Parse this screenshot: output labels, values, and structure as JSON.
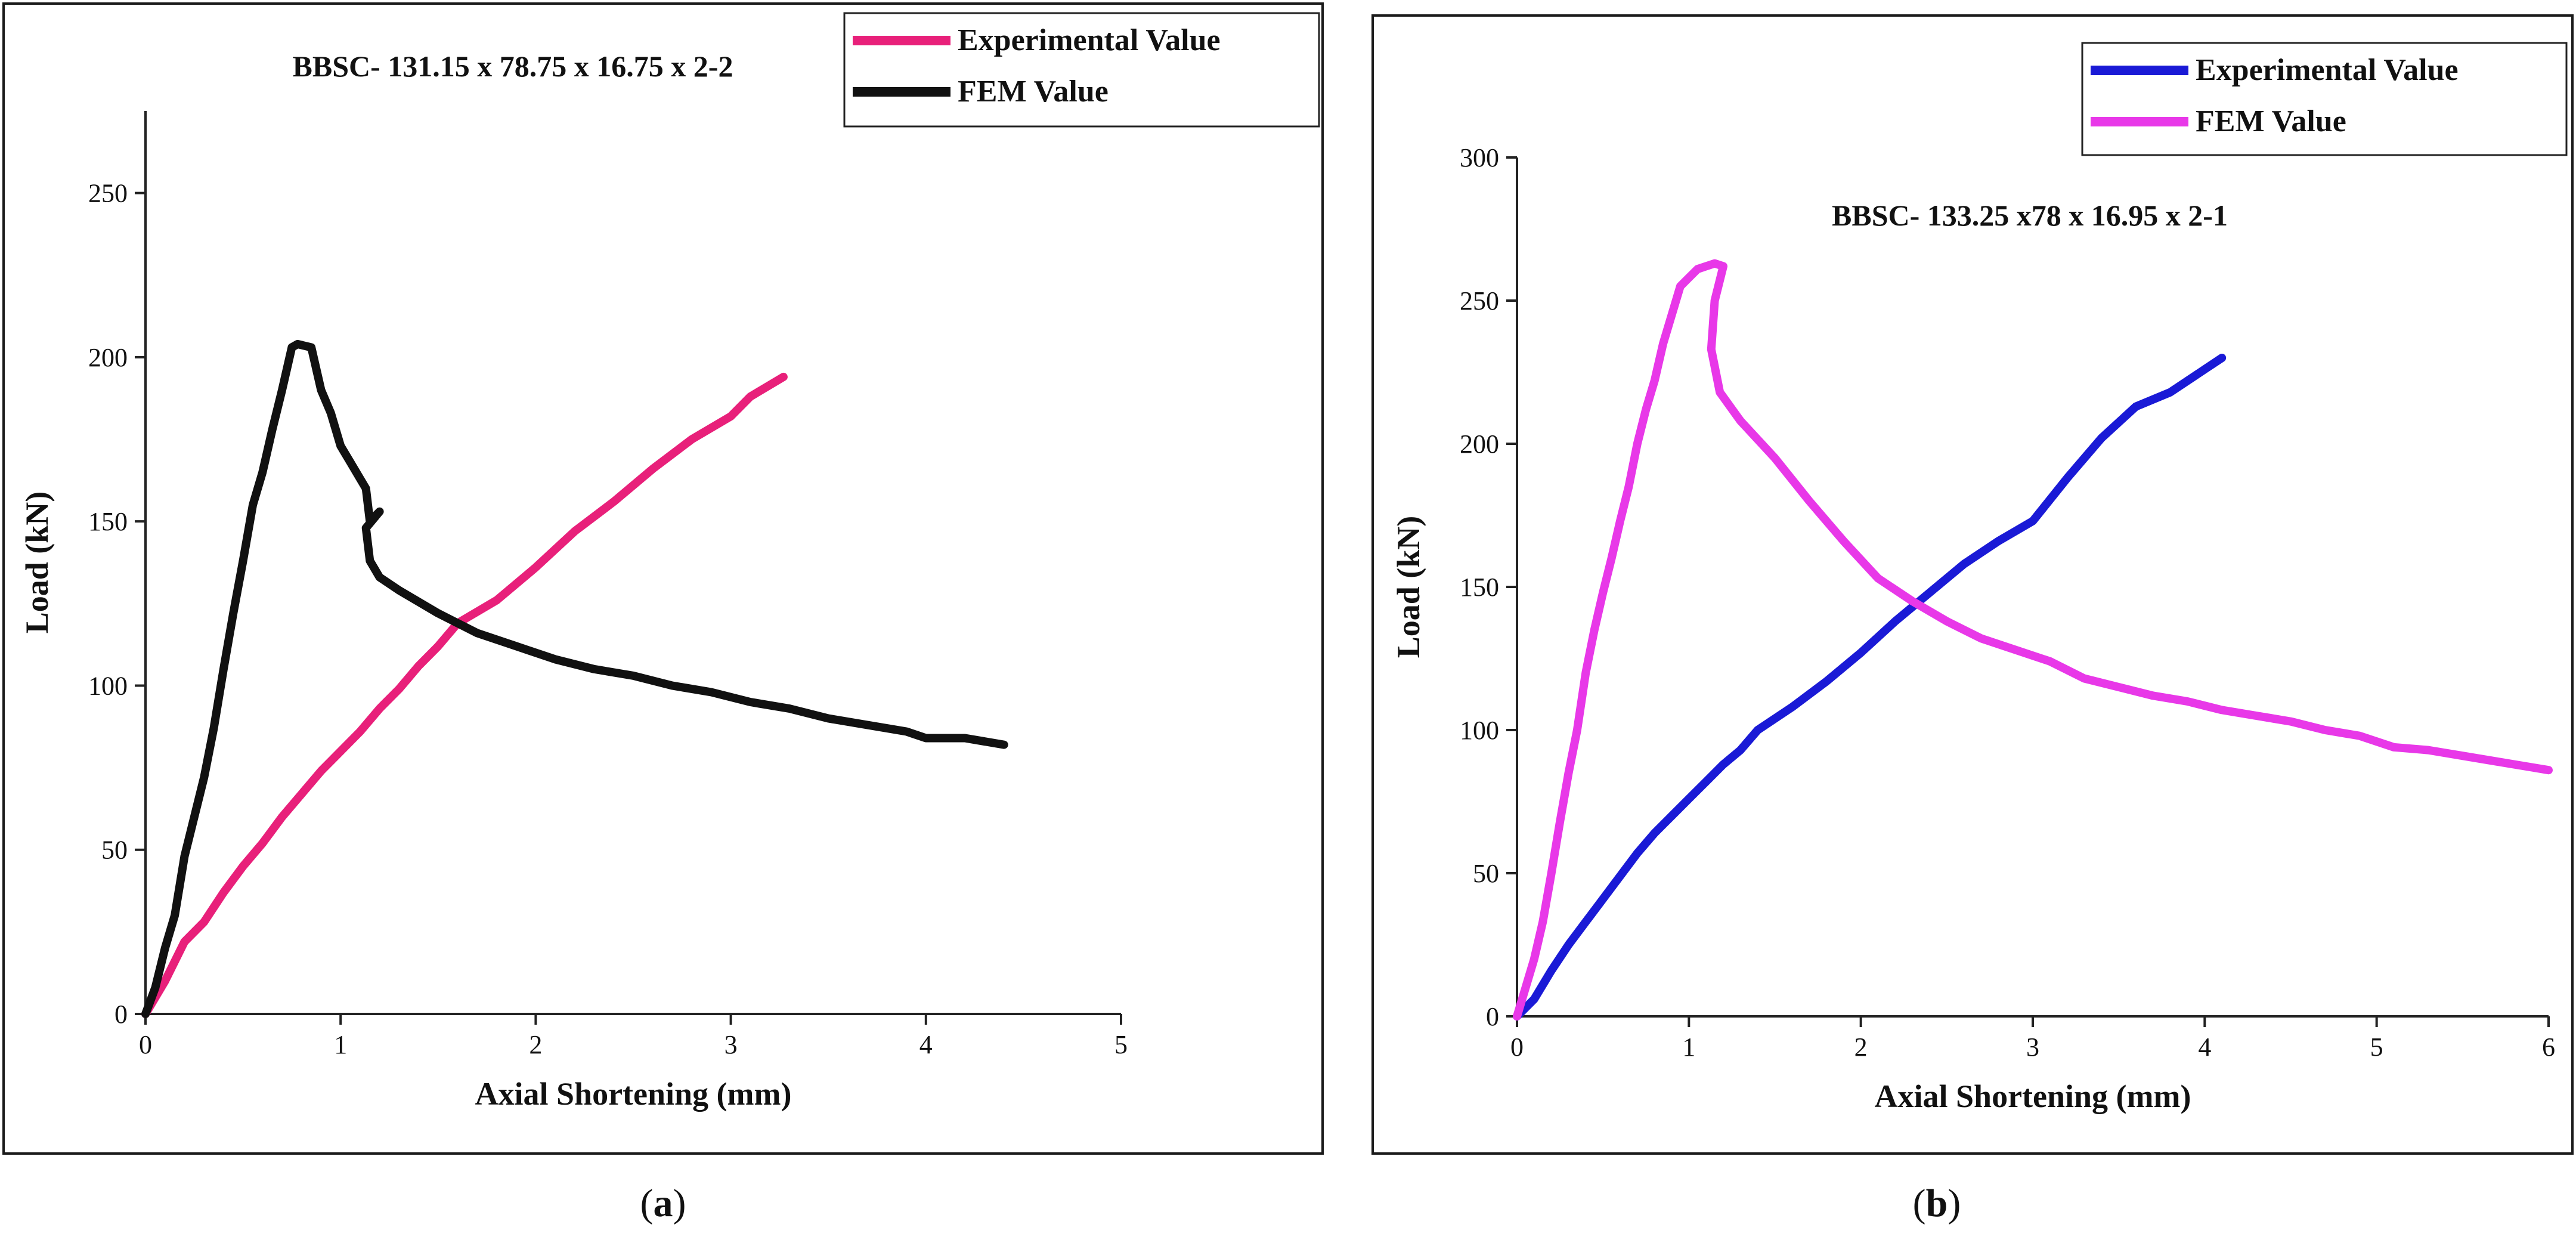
{
  "chart_data": [
    {
      "type": "line",
      "panel_label": "a",
      "title": "BBSC- 131.15 x 78.75 x 16.75 x 2-2",
      "xlabel": "Axial Shortening (mm)",
      "ylabel": "Load (kN)",
      "xlim": [
        0,
        5
      ],
      "ylim": [
        0,
        275
      ],
      "xticks": [
        0,
        1,
        2,
        3,
        4,
        5
      ],
      "yticks": [
        0,
        50,
        100,
        150,
        200,
        250
      ],
      "legend_position": "top-right",
      "series": [
        {
          "name": "Experimental Value",
          "color": "#e8207a",
          "x": [
            0,
            0.1,
            0.2,
            0.3,
            0.4,
            0.5,
            0.6,
            0.7,
            0.8,
            0.9,
            1.0,
            1.1,
            1.2,
            1.3,
            1.4,
            1.5,
            1.6,
            1.8,
            2.0,
            2.2,
            2.4,
            2.6,
            2.8,
            3.0,
            3.1,
            3.27
          ],
          "y": [
            0,
            10,
            22,
            28,
            37,
            45,
            52,
            60,
            67,
            74,
            80,
            86,
            93,
            99,
            106,
            112,
            119,
            126,
            136,
            147,
            156,
            166,
            175,
            182,
            188,
            194
          ]
        },
        {
          "name": "FEM Value",
          "color": "#111111",
          "x": [
            0,
            0.05,
            0.1,
            0.15,
            0.2,
            0.25,
            0.3,
            0.35,
            0.4,
            0.45,
            0.5,
            0.55,
            0.6,
            0.65,
            0.7,
            0.75,
            0.78,
            0.85,
            0.9,
            0.95,
            1.0,
            1.05,
            1.1,
            1.13,
            1.15,
            1.2,
            1.13,
            1.15,
            1.2,
            1.3,
            1.5,
            1.7,
            1.9,
            2.1,
            2.3,
            2.5,
            2.7,
            2.9,
            3.1,
            3.3,
            3.5,
            3.7,
            3.9,
            4.0,
            4.2,
            4.4
          ],
          "y": [
            0,
            8,
            20,
            30,
            48,
            60,
            72,
            87,
            105,
            122,
            138,
            155,
            165,
            178,
            190,
            203,
            204,
            203,
            190,
            183,
            173,
            168,
            163,
            160,
            150,
            153,
            148,
            138,
            133,
            129,
            122,
            116,
            112,
            108,
            105,
            103,
            100,
            98,
            95,
            93,
            90,
            88,
            86,
            84,
            84,
            82
          ]
        }
      ]
    },
    {
      "type": "line",
      "panel_label": "b",
      "title": "BBSC- 133.25 x78 x 16.95 x 2-1",
      "xlabel": "Axial Shortening (mm)",
      "ylabel": "Load (kN)",
      "xlim": [
        0,
        6
      ],
      "ylim": [
        0,
        300
      ],
      "xticks": [
        0,
        1,
        2,
        3,
        4,
        5,
        6
      ],
      "yticks": [
        0,
        50,
        100,
        150,
        200,
        250,
        300
      ],
      "legend_position": "top-right",
      "series": [
        {
          "name": "Experimental Value",
          "color": "#1a1ad6",
          "x": [
            0,
            0.1,
            0.2,
            0.3,
            0.4,
            0.5,
            0.6,
            0.7,
            0.8,
            0.9,
            1.0,
            1.1,
            1.2,
            1.3,
            1.4,
            1.6,
            1.8,
            2.0,
            2.2,
            2.4,
            2.6,
            2.8,
            3.0,
            3.2,
            3.4,
            3.6,
            3.8,
            4.0,
            4.1
          ],
          "y": [
            0,
            6,
            16,
            25,
            33,
            41,
            49,
            57,
            64,
            70,
            76,
            82,
            88,
            93,
            100,
            108,
            117,
            127,
            138,
            148,
            158,
            166,
            173,
            188,
            202,
            213,
            218,
            226,
            230
          ]
        },
        {
          "name": "FEM Value",
          "color": "#e838e8",
          "x": [
            0,
            0.05,
            0.1,
            0.15,
            0.2,
            0.25,
            0.3,
            0.35,
            0.4,
            0.45,
            0.5,
            0.55,
            0.6,
            0.65,
            0.7,
            0.75,
            0.8,
            0.85,
            0.9,
            0.95,
            1.0,
            1.05,
            1.1,
            1.15,
            1.2,
            1.15,
            1.13,
            1.18,
            1.3,
            1.5,
            1.7,
            1.9,
            2.1,
            2.3,
            2.5,
            2.7,
            2.9,
            3.1,
            3.3,
            3.5,
            3.7,
            3.9,
            4.1,
            4.3,
            4.5,
            4.7,
            4.9,
            5.1,
            5.3,
            5.5,
            5.7,
            5.9,
            6.0
          ],
          "y": [
            0,
            10,
            20,
            33,
            50,
            68,
            85,
            100,
            120,
            135,
            148,
            160,
            173,
            185,
            200,
            212,
            222,
            235,
            245,
            255,
            258,
            261,
            262,
            263,
            262,
            250,
            233,
            218,
            208,
            195,
            180,
            166,
            153,
            145,
            138,
            132,
            128,
            124,
            118,
            115,
            112,
            110,
            107,
            105,
            103,
            100,
            98,
            94,
            93,
            91,
            89,
            87,
            86
          ]
        }
      ]
    }
  ]
}
